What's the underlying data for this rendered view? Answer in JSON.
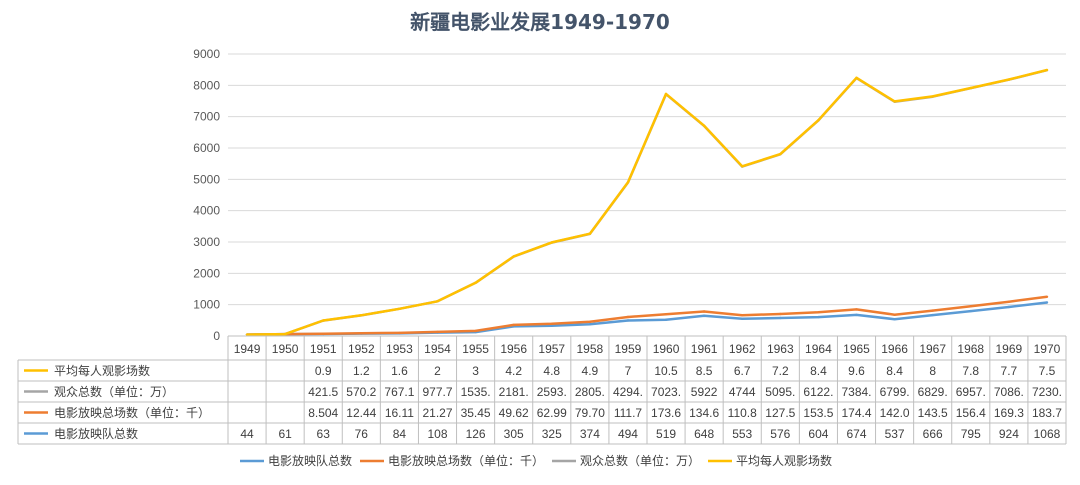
{
  "chart_data": {
    "type": "line",
    "title": "新疆电影业发展1949-1970",
    "categories": [
      "1949",
      "1950",
      "1951",
      "1952",
      "1953",
      "1954",
      "1955",
      "1956",
      "1957",
      "1958",
      "1959",
      "1960",
      "1961",
      "1962",
      "1963",
      "1964",
      "1965",
      "1966",
      "1967",
      "1968",
      "1969",
      "1970"
    ],
    "ylim": [
      0,
      9000
    ],
    "yticks": [
      "0",
      "1000",
      "2000",
      "3000",
      "4000",
      "5000",
      "6000",
      "7000",
      "8000",
      "9000"
    ],
    "grid": true,
    "legend_position": "bottom",
    "series": [
      {
        "name": "电影放映队总数",
        "color": "#5b9bd5",
        "values": [
          44,
          61,
          63,
          76,
          84,
          108,
          126,
          305,
          325,
          374,
          494,
          519,
          648,
          553,
          576,
          604,
          674,
          537,
          666,
          795,
          924,
          1068
        ],
        "labels": [
          "44",
          "61",
          "63",
          "76",
          "84",
          "108",
          "126",
          "305",
          "325",
          "374",
          "494",
          "519",
          "648",
          "553",
          "576",
          "604",
          "674",
          "537",
          "666",
          "795",
          "924",
          "1068"
        ]
      },
      {
        "name": "电影放映总场数（单位：千）",
        "color": "#ed7d31",
        "values": [
          null,
          null,
          8.504,
          12.44,
          16.11,
          21.27,
          35.45,
          49.62,
          62.99,
          79.7,
          111.7,
          173.6,
          134.6,
          110.8,
          127.5,
          153.5,
          174.4,
          142.0,
          143.5,
          156.4,
          169.3,
          183.7
        ],
        "labels": [
          "",
          "",
          "8.504",
          "12.44",
          "16.11",
          "21.27",
          "35.45",
          "49.62",
          "62.99",
          "79.70",
          "111.7",
          "173.6",
          "134.6",
          "110.8",
          "127.5",
          "153.5",
          "174.4",
          "142.0",
          "143.5",
          "156.4",
          "169.3",
          "183.7"
        ]
      },
      {
        "name": "观众总数（单位：万）",
        "color": "#a5a5a5",
        "values": [
          null,
          null,
          421.5,
          570.2,
          767.1,
          977.7,
          1535,
          2181,
          2593,
          2805,
          4294,
          7023,
          5922,
          4744,
          5095,
          6122,
          7384,
          6799,
          6829,
          6957,
          7086,
          7230
        ],
        "labels": [
          "",
          "",
          "421.5",
          "570.2",
          "767.1",
          "977.7",
          "1535.",
          "2181.",
          "2593.",
          "2805.",
          "4294.",
          "7023.",
          "5922",
          "4744",
          "5095.",
          "6122.",
          "7384.",
          "6799.",
          "6829.",
          "6957.",
          "7086.",
          "7230."
        ]
      },
      {
        "name": "平均每人观影场数",
        "color": "#ffc000",
        "values": [
          null,
          null,
          0.9,
          1.2,
          1.6,
          2,
          3,
          4.2,
          4.8,
          4.9,
          7,
          10.5,
          8.5,
          6.7,
          7.2,
          8.4,
          9.6,
          8.4,
          8,
          7.8,
          7.7,
          7.5
        ],
        "labels": [
          "",
          "",
          "0.9",
          "1.2",
          "1.6",
          "2",
          "3",
          "4.2",
          "4.8",
          "4.9",
          "7",
          "10.5",
          "8.5",
          "6.7",
          "7.2",
          "8.4",
          "9.6",
          "8.4",
          "8",
          "7.8",
          "7.7",
          "7.5"
        ]
      }
    ],
    "legend_order": [
      0,
      1,
      2,
      3
    ],
    "table_row_order": [
      3,
      2,
      1,
      0
    ]
  }
}
